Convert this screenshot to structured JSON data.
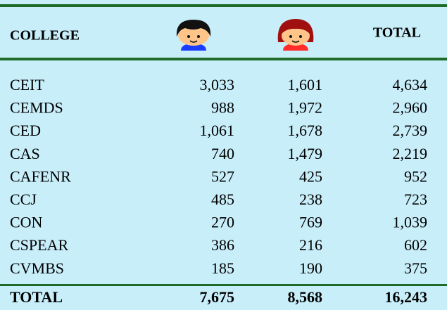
{
  "table": {
    "header": {
      "college": "COLLEGE",
      "total": "TOTAL"
    },
    "rows": [
      [
        "CEIT",
        "3,033",
        "1,601",
        "4,634"
      ],
      [
        "CEMDS",
        "988",
        "1,972",
        "2,960"
      ],
      [
        "CED",
        "1,061",
        "1,678",
        "2,739"
      ],
      [
        "CAS",
        "740",
        "1,479",
        "2,219"
      ],
      [
        "CAFENR",
        "527",
        "425",
        "952"
      ],
      [
        "CCJ",
        "485",
        "238",
        "723"
      ],
      [
        "CON",
        "270",
        "769",
        "1,039"
      ],
      [
        "CSPEAR",
        "386",
        "216",
        "602"
      ],
      [
        "CVMBS",
        "185",
        "190",
        "375"
      ]
    ],
    "footer": [
      "TOTAL",
      "7,675",
      "8,568",
      "16,243"
    ]
  }
}
